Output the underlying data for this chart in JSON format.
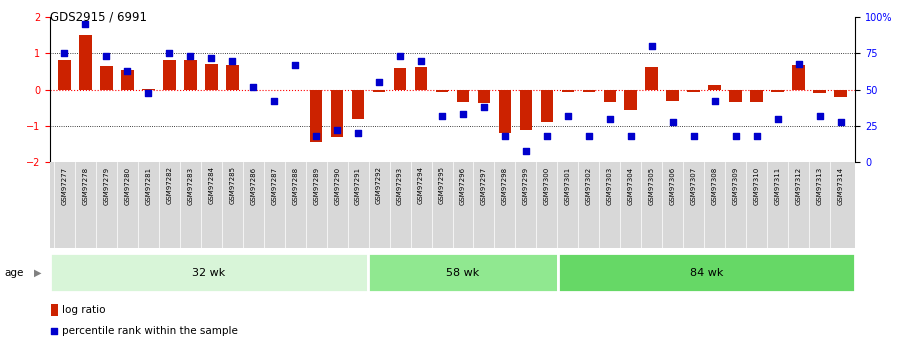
{
  "title": "GDS2915 / 6991",
  "samples": [
    "GSM97277",
    "GSM97278",
    "GSM97279",
    "GSM97280",
    "GSM97281",
    "GSM97282",
    "GSM97283",
    "GSM97284",
    "GSM97285",
    "GSM97286",
    "GSM97287",
    "GSM97288",
    "GSM97289",
    "GSM97290",
    "GSM97291",
    "GSM97292",
    "GSM97293",
    "GSM97294",
    "GSM97295",
    "GSM97296",
    "GSM97297",
    "GSM97298",
    "GSM97299",
    "GSM97300",
    "GSM97301",
    "GSM97302",
    "GSM97303",
    "GSM97304",
    "GSM97305",
    "GSM97306",
    "GSM97307",
    "GSM97308",
    "GSM97309",
    "GSM97310",
    "GSM97311",
    "GSM97312",
    "GSM97313",
    "GSM97314"
  ],
  "log_ratio": [
    0.82,
    1.5,
    0.65,
    0.55,
    0.03,
    0.82,
    0.82,
    0.72,
    0.67,
    0.0,
    0.0,
    0.0,
    -1.45,
    -1.3,
    -0.8,
    -0.07,
    0.6,
    0.62,
    -0.05,
    -0.35,
    -0.38,
    -1.2,
    -1.1,
    -0.9,
    -0.05,
    -0.05,
    -0.35,
    -0.55,
    0.62,
    -0.3,
    -0.07,
    0.12,
    -0.35,
    -0.35,
    -0.05,
    0.68,
    -0.1,
    -0.2
  ],
  "percentile": [
    75,
    95,
    73,
    63,
    48,
    75,
    73,
    72,
    70,
    52,
    42,
    67,
    18,
    22,
    20,
    55,
    73,
    70,
    32,
    33,
    38,
    18,
    8,
    18,
    32,
    18,
    30,
    18,
    80,
    28,
    18,
    42,
    18,
    18,
    30,
    68,
    32,
    28
  ],
  "groups": [
    {
      "label": "32 wk",
      "start": 0,
      "end": 15,
      "color": "#d8f5d8"
    },
    {
      "label": "58 wk",
      "start": 15,
      "end": 24,
      "color": "#90e890"
    },
    {
      "label": "84 wk",
      "start": 24,
      "end": 38,
      "color": "#66d866"
    }
  ],
  "bar_color": "#cc2200",
  "dot_color": "#0000cc",
  "ylim": [
    -2,
    2
  ],
  "yticks_left": [
    -2,
    -1,
    0,
    1,
    2
  ],
  "yticks_right": [
    0,
    25,
    50,
    75,
    100
  ],
  "hlines": [
    -1,
    0,
    1
  ],
  "legend_bar": "log ratio",
  "legend_dot": "percentile rank within the sample",
  "age_label": "age",
  "background_color": "#ffffff",
  "xticklabel_bg": "#d8d8d8"
}
